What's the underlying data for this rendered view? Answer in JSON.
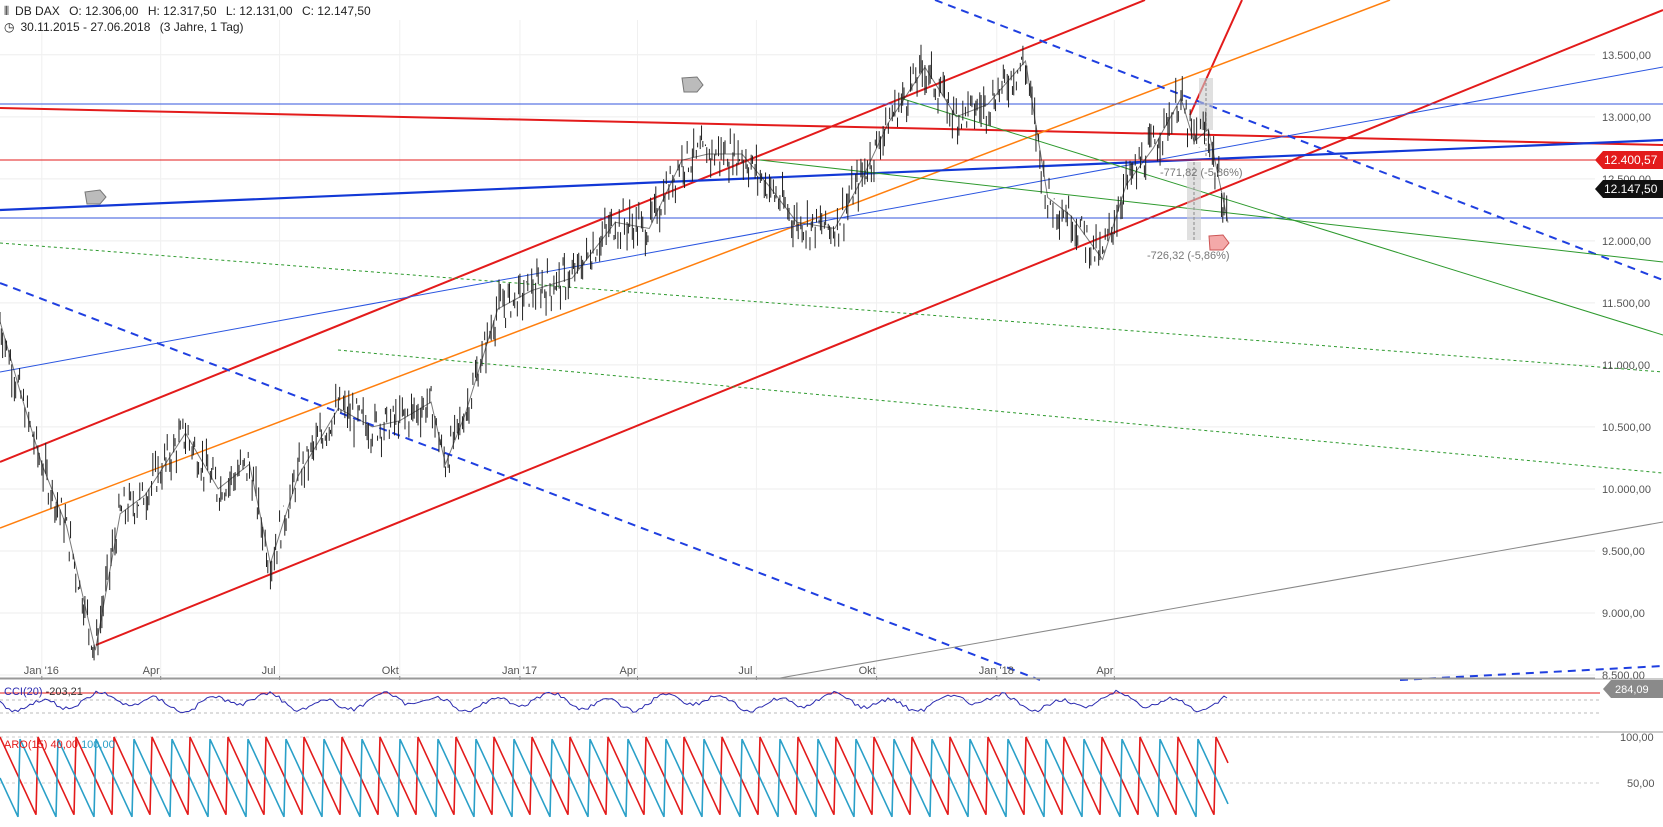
{
  "header": {
    "symbol": "DB DAX",
    "open": "O: 12.306,00",
    "high": "H: 12.317,50",
    "low": "L: 12.131,00",
    "close": "C: 12.147,50",
    "range": "30.11.2015 - 27.06.2018",
    "period": "(3 Jahre, 1 Tag)"
  },
  "price_tags": {
    "level_red": "12.400,57",
    "last_close": "12.147,50",
    "cci_high": "284,09"
  },
  "annotations": {
    "drop1": "-771,82 (-5,86%)",
    "drop2": "-726,32 (-5,86%)"
  },
  "indicators": {
    "cci_label": "CCI(20)",
    "cci_value": "-203,21",
    "aro_label": "ARO(15)",
    "aro_v1": "40,00",
    "aro_v2": "100,00"
  },
  "colors": {
    "price": "#222222",
    "red_trend": "#e31b1b",
    "blue_trend": "#1238d6",
    "dashed_blue": "#1f3fe0",
    "orange": "#ff7f0e",
    "green": "#2e9a2e",
    "gray": "#888888",
    "cci": "#2b2bb0",
    "aroon_up": "#e31b1b",
    "aroon_down": "#2aa0c8"
  },
  "chart_data": {
    "type": "line",
    "title": "DB DAX",
    "y_axis": {
      "min": 8500,
      "max": 13700,
      "ticks": [
        13500,
        13000,
        12500,
        12000,
        11500,
        11000,
        10500,
        10000,
        9500,
        9000,
        8500
      ],
      "tick_labels": [
        "13.500,00",
        "13.000,00",
        "12.500,00",
        "12.000,00",
        "11.500,00",
        "11.000,00",
        "10.500,00",
        "10.000,00",
        "9.500,00",
        "9.000,00",
        "8.500,00"
      ]
    },
    "x_axis": {
      "labels": [
        "Jan '16",
        "Apr",
        "Jul",
        "Okt",
        "Jan '17",
        "Apr",
        "Jul",
        "Okt",
        "Jan '18",
        "Apr"
      ]
    },
    "series": [
      {
        "name": "DB DAX",
        "x": [
          "2015-11-30",
          "2015-12-15",
          "2016-01-01",
          "2016-01-20",
          "2016-02-11",
          "2016-03-01",
          "2016-03-20",
          "2016-04-20",
          "2016-05-15",
          "2016-06-08",
          "2016-06-24",
          "2016-07-15",
          "2016-08-15",
          "2016-09-10",
          "2016-10-01",
          "2016-10-25",
          "2016-11-05",
          "2016-11-20",
          "2016-12-15",
          "2017-01-10",
          "2017-02-10",
          "2017-03-15",
          "2017-04-10",
          "2017-05-05",
          "2017-05-25",
          "2017-06-20",
          "2017-07-10",
          "2017-08-01",
          "2017-08-30",
          "2017-09-20",
          "2017-10-10",
          "2017-11-07",
          "2017-12-01",
          "2017-12-25",
          "2018-01-23",
          "2018-02-09",
          "2018-02-27",
          "2018-03-23",
          "2018-04-10",
          "2018-05-01",
          "2018-05-22",
          "2018-06-01",
          "2018-06-12",
          "2018-06-27"
        ],
        "close": [
          11350,
          10800,
          10200,
          9700,
          8700,
          9800,
          9950,
          10450,
          10000,
          10200,
          9400,
          10100,
          10650,
          10500,
          10550,
          10700,
          10200,
          10600,
          11450,
          11600,
          11700,
          12150,
          12100,
          12650,
          12700,
          12700,
          12450,
          12150,
          12100,
          12500,
          12950,
          13400,
          13000,
          13100,
          13450,
          12350,
          12200,
          11850,
          12450,
          12750,
          13150,
          12800,
          12900,
          12147.5
        ]
      }
    ],
    "horizontal_levels": [
      12400.57,
      12950,
      11970
    ],
    "cci": {
      "label": "CCI(20)",
      "last": -203.21,
      "max": 284.09
    },
    "aroon": {
      "label": "ARO(15)",
      "up": 40,
      "down": 100,
      "ticks": [
        "100,00",
        "50,00"
      ]
    }
  }
}
